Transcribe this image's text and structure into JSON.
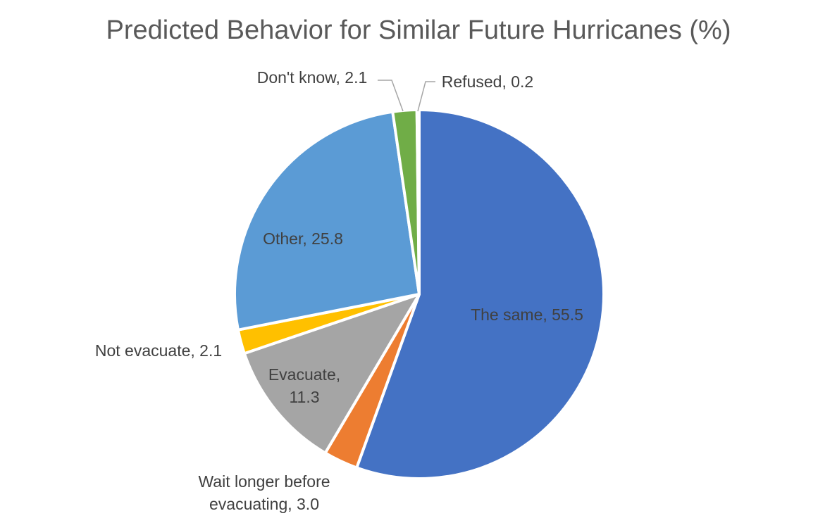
{
  "chart_data": {
    "type": "pie",
    "title": "Predicted Behavior for Similar Future Hurricanes (%)",
    "slices": [
      {
        "label": "The same",
        "value": 55.5,
        "color": "#4472C4",
        "label_text": [
          "The same, 55.5"
        ]
      },
      {
        "label": "Wait longer before evacuating",
        "value": 3.0,
        "color": "#ED7D31",
        "label_text": [
          "Wait longer before",
          "evacuating, 3.0"
        ]
      },
      {
        "label": "Evacuate",
        "value": 11.3,
        "color": "#A5A5A5",
        "label_text": [
          "Evacuate,",
          "11.3"
        ]
      },
      {
        "label": "Not evacuate",
        "value": 2.1,
        "color": "#FFC000",
        "label_text": [
          "Not evacuate, 2.1"
        ]
      },
      {
        "label": "Other",
        "value": 25.8,
        "color": "#5B9BD5",
        "label_text": [
          "Other, 25.8"
        ]
      },
      {
        "label": "Don't know",
        "value": 2.1,
        "color": "#70AD47",
        "label_text": [
          "Don't know, 2.1"
        ]
      },
      {
        "label": "Refused",
        "value": 0.2,
        "color": "#264478",
        "label_text": [
          "Refused, 0.2"
        ]
      }
    ]
  }
}
